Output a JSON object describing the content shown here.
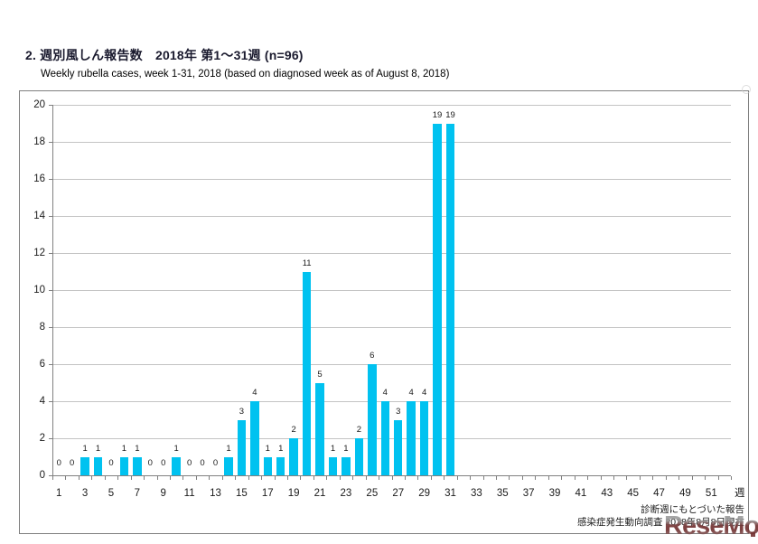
{
  "header": {
    "title": "2. 週別風しん報告数　2018年 第1～31週 (n=96)",
    "subtitle": "Weekly rubella cases, week 1-31, 2018 (based on diagnosed week as of August 8, 2018)"
  },
  "chart_data": {
    "type": "bar",
    "title": "Weekly rubella cases, week 1-31, 2018",
    "x": [
      1,
      2,
      3,
      4,
      5,
      6,
      7,
      8,
      9,
      10,
      11,
      12,
      13,
      14,
      15,
      16,
      17,
      18,
      19,
      20,
      21,
      22,
      23,
      24,
      25,
      26,
      27,
      28,
      29,
      30,
      31
    ],
    "values": [
      0,
      0,
      1,
      1,
      0,
      1,
      1,
      0,
      0,
      1,
      0,
      0,
      0,
      1,
      3,
      4,
      1,
      1,
      2,
      11,
      5,
      1,
      1,
      2,
      6,
      4,
      3,
      4,
      4,
      19,
      19
    ],
    "n_total": 96,
    "x_weeks_shown": 52,
    "x_tick_labels": [
      "1",
      "3",
      "5",
      "7",
      "9",
      "11",
      "13",
      "15",
      "17",
      "19",
      "21",
      "23",
      "25",
      "27",
      "29",
      "31",
      "33",
      "35",
      "37",
      "39",
      "41",
      "43",
      "45",
      "47",
      "49",
      "51"
    ],
    "x_axis_unit": "週",
    "xlabel": "週",
    "ylabel": "",
    "ylim": [
      0,
      20
    ],
    "y_ticks": [
      0,
      2,
      4,
      6,
      8,
      10,
      12,
      14,
      16,
      18,
      20
    ],
    "grid": "horizontal",
    "legend": "none",
    "data_labels": true,
    "bar_color": "#00c2f0",
    "gridline_color": "#c3c3c3",
    "axis_color": "#808080"
  },
  "footnotes": {
    "line1": "診断週にもとづいた報告",
    "line2": "感染症発生動向調査 2018年8月8日現在"
  },
  "watermark": {
    "text": "ReseMom"
  }
}
